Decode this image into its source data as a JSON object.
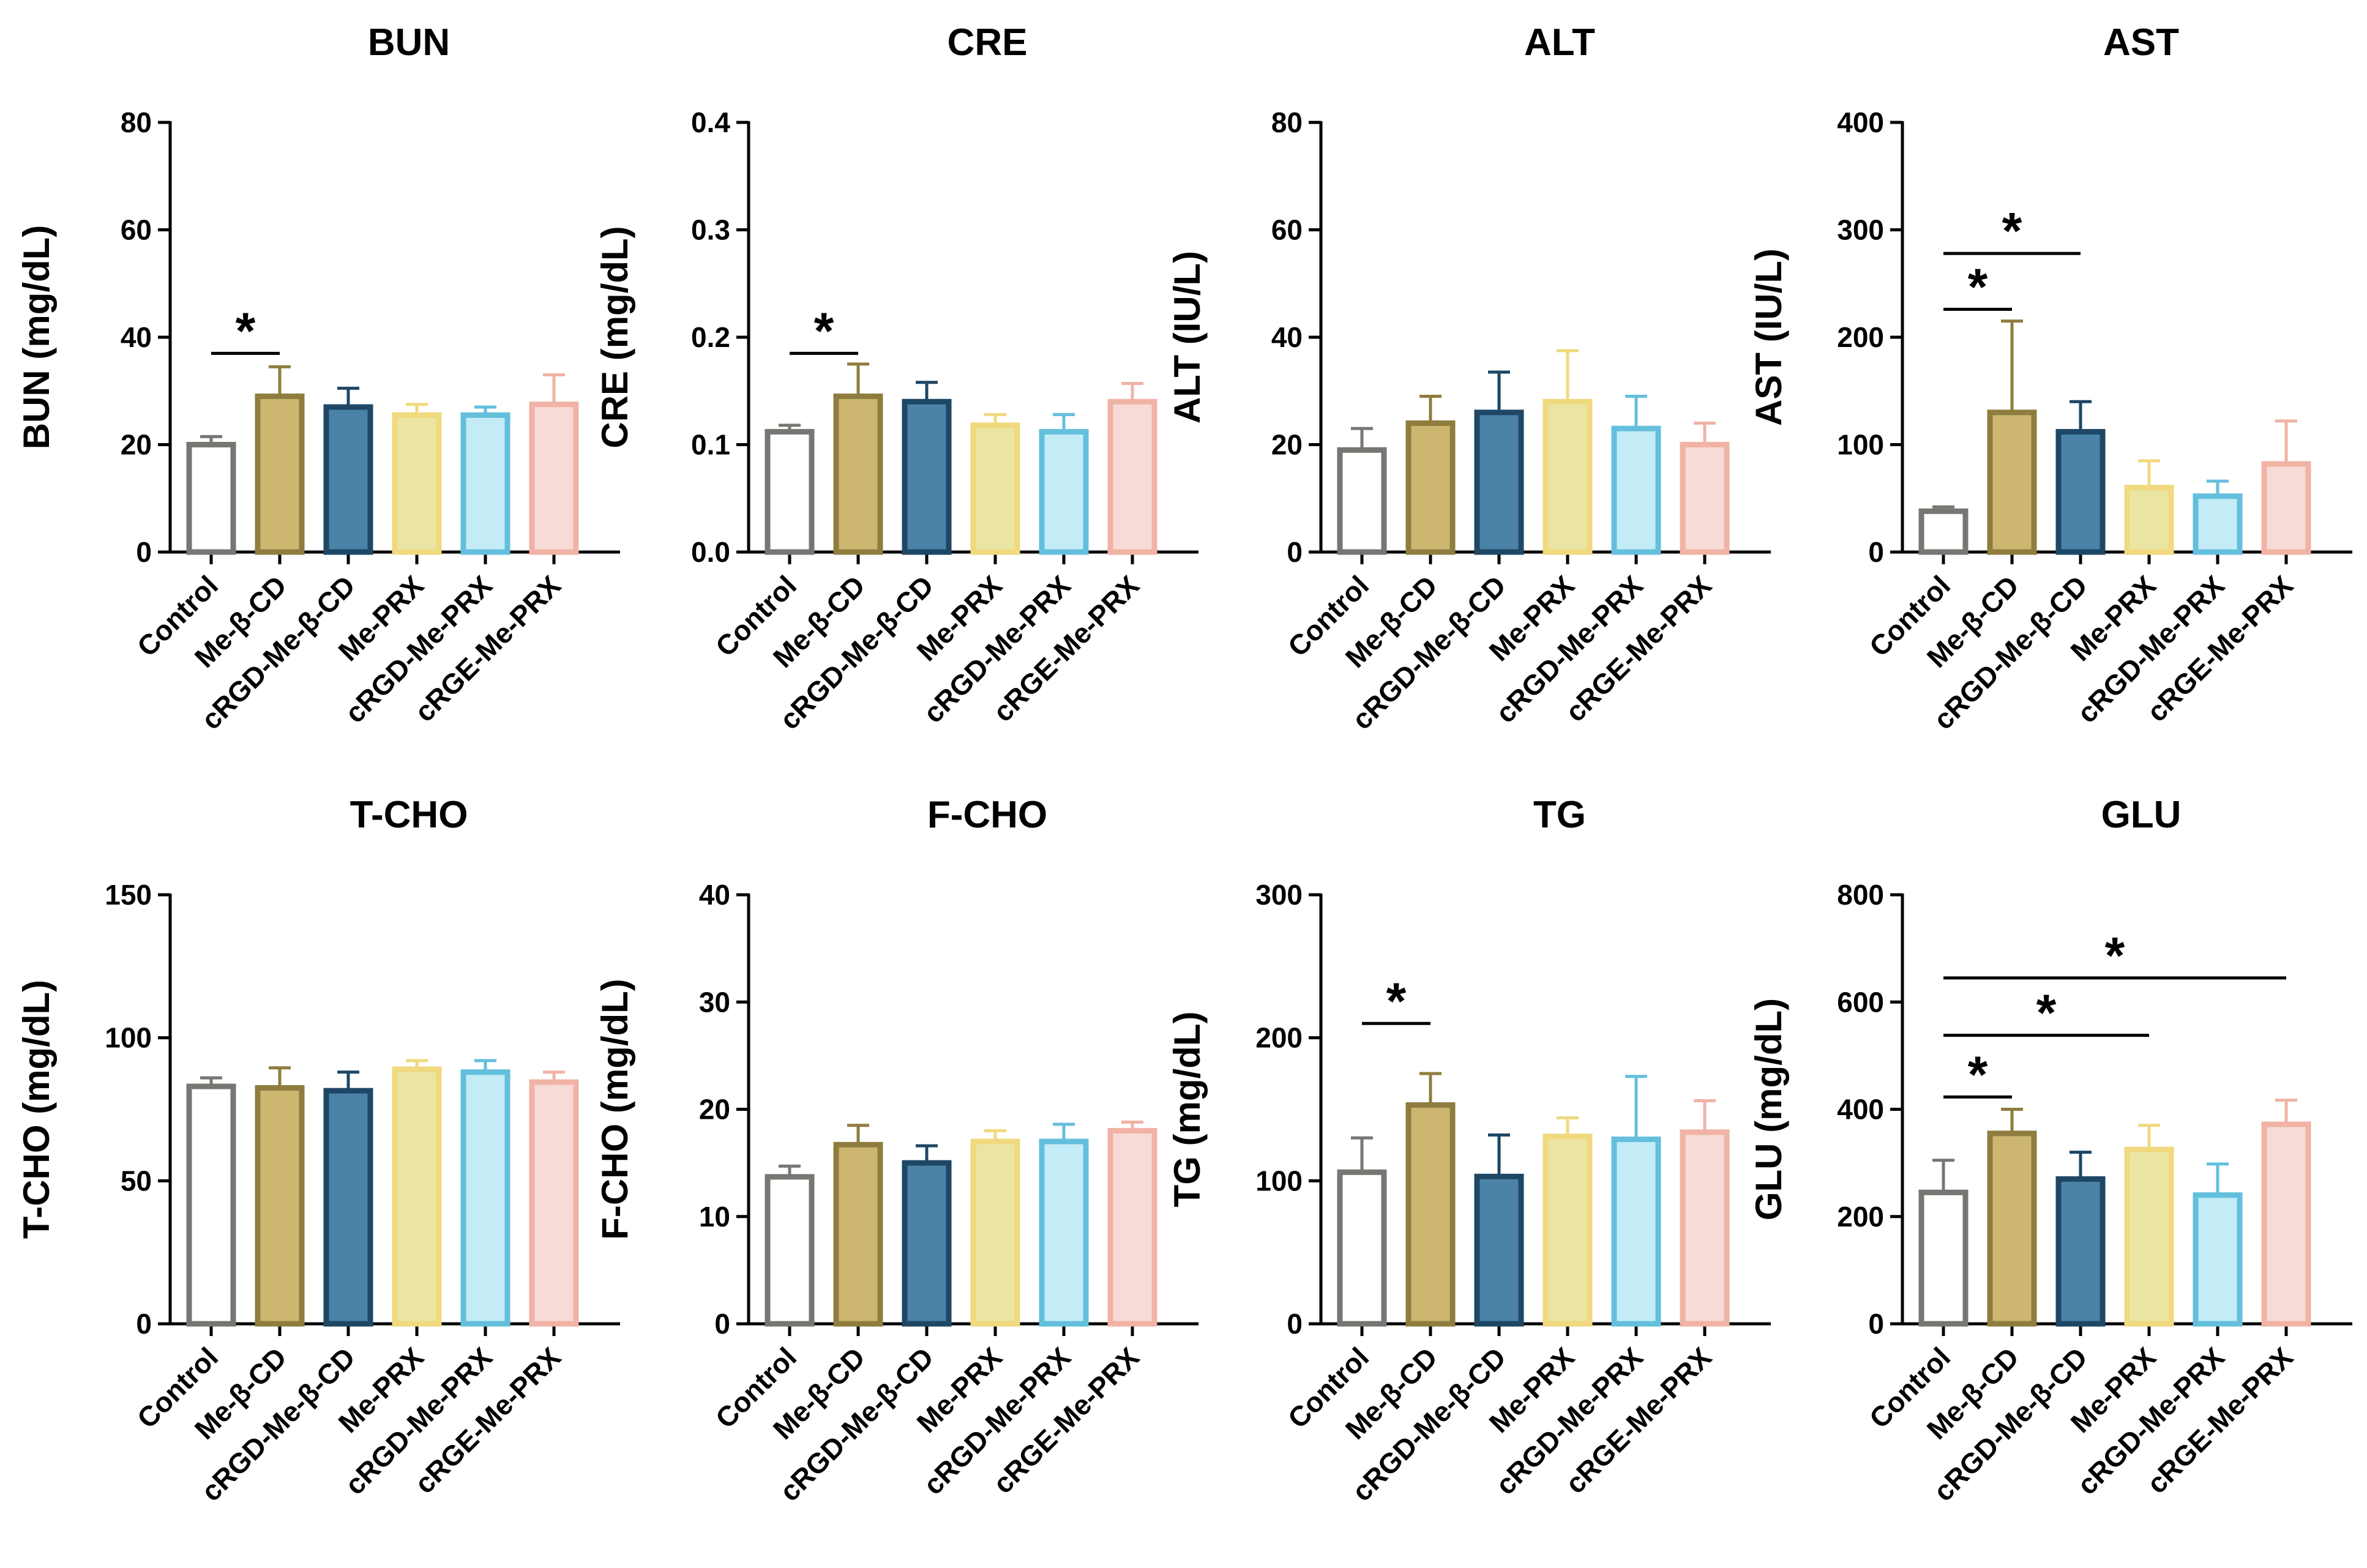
{
  "chart_data": [
    {
      "type": "bar",
      "title": "BUN",
      "xlabel": "",
      "ylabel": "BUN (mg/dL)",
      "ylim": [
        0,
        80
      ],
      "yticks": [
        "0",
        "20",
        "40",
        "60",
        "80"
      ],
      "categories": [
        "Control",
        "Me-β-CD",
        "cRGD-Me-β-CD",
        "Me-PRX",
        "cRGD-Me-PRX",
        "cRGE-Me-PRX"
      ],
      "values": [
        20,
        29,
        27,
        25.5,
        25.5,
        27.5
      ],
      "errors": [
        1.5,
        5.5,
        3.5,
        2,
        1.5,
        5.5
      ],
      "significance": [
        {
          "from": 0,
          "to": 1,
          "label": "*",
          "y": 37
        }
      ]
    },
    {
      "type": "bar",
      "title": "CRE",
      "xlabel": "",
      "ylabel": "CRE (mg/dL)",
      "ylim": [
        0,
        0.4
      ],
      "yticks": [
        "0.0",
        "0.1",
        "0.2",
        "0.3",
        "0.4"
      ],
      "categories": [
        "Control",
        "Me-β-CD",
        "cRGD-Me-β-CD",
        "Me-PRX",
        "cRGD-Me-PRX",
        "cRGE-Me-PRX"
      ],
      "values": [
        0.112,
        0.145,
        0.14,
        0.118,
        0.112,
        0.14
      ],
      "errors": [
        0.006,
        0.03,
        0.018,
        0.01,
        0.016,
        0.017
      ],
      "significance": [
        {
          "from": 0,
          "to": 1,
          "label": "*",
          "y": 0.185
        }
      ]
    },
    {
      "type": "bar",
      "title": "ALT",
      "xlabel": "",
      "ylabel": "ALT (IU/L)",
      "ylim": [
        0,
        80
      ],
      "yticks": [
        "0",
        "20",
        "40",
        "60",
        "80"
      ],
      "categories": [
        "Control",
        "Me-β-CD",
        "cRGD-Me-β-CD",
        "Me-PRX",
        "cRGD-Me-PRX",
        "cRGE-Me-PRX"
      ],
      "values": [
        19,
        24,
        26,
        28,
        23,
        20
      ],
      "errors": [
        4,
        5,
        7.5,
        9.5,
        6,
        4
      ],
      "significance": []
    },
    {
      "type": "bar",
      "title": "AST",
      "xlabel": "",
      "ylabel": "AST (IU/L)",
      "ylim": [
        0,
        400
      ],
      "yticks": [
        "0",
        "100",
        "200",
        "300",
        "400"
      ],
      "categories": [
        "Control",
        "Me-β-CD",
        "cRGD-Me-β-CD",
        "Me-PRX",
        "cRGD-Me-PRX",
        "cRGE-Me-PRX"
      ],
      "values": [
        38,
        130,
        112,
        60,
        52,
        82
      ],
      "errors": [
        4,
        85,
        28,
        25,
        14,
        40
      ],
      "significance": [
        {
          "from": 0,
          "to": 1,
          "label": "*",
          "y": 226
        },
        {
          "from": 0,
          "to": 2,
          "label": "*",
          "y": 278
        }
      ]
    },
    {
      "type": "bar",
      "title": "T-CHO",
      "xlabel": "",
      "ylabel": "T-CHO (mg/dL)",
      "ylim": [
        0,
        150
      ],
      "yticks": [
        "0",
        "50",
        "100",
        "150"
      ],
      "categories": [
        "Control",
        "Me-β-CD",
        "cRGD-Me-β-CD",
        "Me-PRX",
        "cRGD-Me-PRX",
        "cRGE-Me-PRX"
      ],
      "values": [
        83,
        82.5,
        81.5,
        89,
        88,
        84.5
      ],
      "errors": [
        3,
        7,
        6.5,
        3,
        4,
        3.5
      ],
      "significance": []
    },
    {
      "type": "bar",
      "title": "F-CHO",
      "xlabel": "",
      "ylabel": "F-CHO (mg/dL)",
      "ylim": [
        0,
        40
      ],
      "yticks": [
        "0",
        "10",
        "20",
        "30",
        "40"
      ],
      "categories": [
        "Control",
        "Me-β-CD",
        "cRGD-Me-β-CD",
        "Me-PRX",
        "cRGD-Me-PRX",
        "cRGE-Me-PRX"
      ],
      "values": [
        13.7,
        16.7,
        15,
        17,
        17,
        18
      ],
      "errors": [
        1,
        1.8,
        1.6,
        1,
        1.6,
        0.8
      ],
      "significance": []
    },
    {
      "type": "bar",
      "title": "TG",
      "xlabel": "",
      "ylabel": "TG (mg/dL)",
      "ylim": [
        0,
        300
      ],
      "yticks": [
        "0",
        "100",
        "200",
        "300"
      ],
      "categories": [
        "Control",
        "Me-β-CD",
        "cRGD-Me-β-CD",
        "Me-PRX",
        "cRGD-Me-PRX",
        "cRGE-Me-PRX"
      ],
      "values": [
        106,
        153,
        103,
        131,
        129,
        134
      ],
      "errors": [
        24,
        22,
        29,
        13,
        44,
        22
      ],
      "significance": [
        {
          "from": 0,
          "to": 1,
          "label": "*",
          "y": 210
        }
      ]
    },
    {
      "type": "bar",
      "title": "GLU",
      "xlabel": "",
      "ylabel": "GLU (mg/dL)",
      "ylim": [
        0,
        800
      ],
      "yticks": [
        "0",
        "200",
        "400",
        "600",
        "800"
      ],
      "categories": [
        "Control",
        "Me-β-CD",
        "cRGD-Me-β-CD",
        "Me-PRX",
        "cRGD-Me-PRX",
        "cRGE-Me-PRX"
      ],
      "values": [
        245,
        355,
        270,
        325,
        240,
        372
      ],
      "errors": [
        60,
        45,
        50,
        45,
        58,
        45
      ],
      "significance": [
        {
          "from": 0,
          "to": 1,
          "label": "*",
          "y": 423
        },
        {
          "from": 0,
          "to": 3,
          "label": "*",
          "y": 538
        },
        {
          "from": 0,
          "to": 5,
          "label": "*",
          "y": 645
        }
      ]
    }
  ],
  "colors": {
    "fill": [
      "#ffffff",
      "#cdb770",
      "#4b82a8",
      "#eae5a2",
      "#c4ecf6",
      "#f6dbd6"
    ],
    "stroke": [
      "#777672",
      "#8f7d3f",
      "#1e4766",
      "#f0d97e",
      "#64bfdd",
      "#f0b3a6"
    ],
    "axis": "#000000"
  }
}
